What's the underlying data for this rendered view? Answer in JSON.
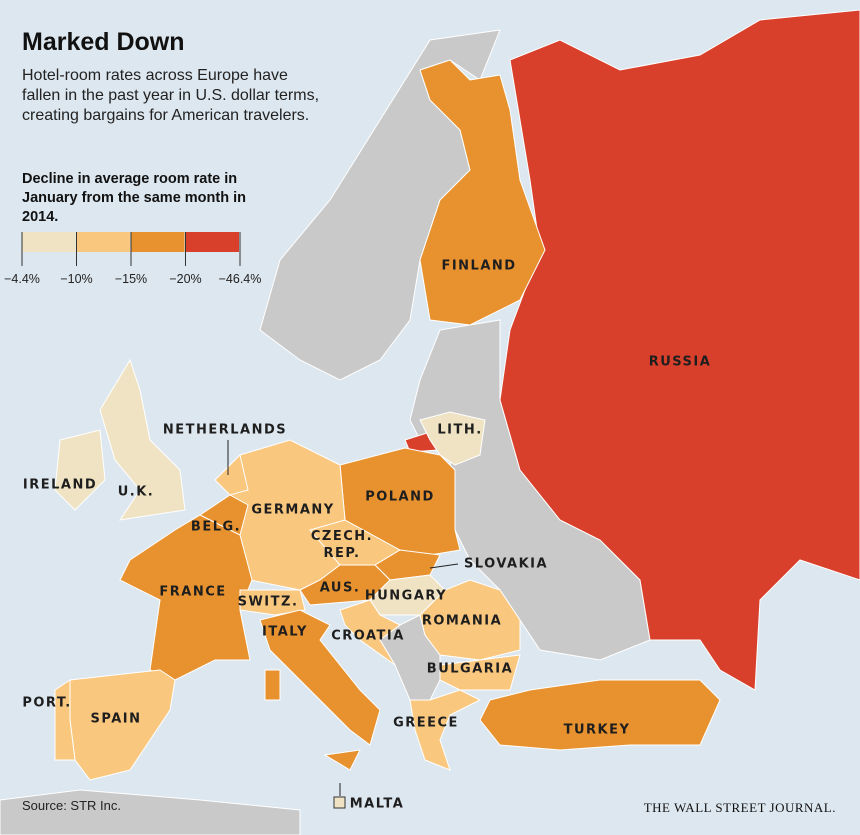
{
  "header": {
    "title": "Marked Down",
    "subtitle": "Hotel-room rates across Europe have fallen in the past year in U.S. dollar terms, creating bargains for American travelers."
  },
  "legend": {
    "title": "Decline in average room rate in January from the same month in 2014.",
    "colors": [
      "#efe3c3",
      "#f9c77e",
      "#e8922f",
      "#d9402b"
    ],
    "ticks": [
      "−4.4%",
      "−10%",
      "−15%",
      "−20%",
      "−46.4%"
    ]
  },
  "countries": [
    {
      "label": "RUSSIA",
      "color": "#d9402b"
    },
    {
      "label": "FINLAND",
      "color": "#e8922f"
    },
    {
      "label": "LITH.",
      "color": "#efe3c3"
    },
    {
      "label": "POLAND",
      "color": "#e8922f"
    },
    {
      "label": "IRELAND",
      "color": "#efe3c3"
    },
    {
      "label": "U.K.",
      "color": "#efe3c3"
    },
    {
      "label": "NETHERLANDS",
      "color": "#f9c77e"
    },
    {
      "label": "BELG.",
      "color": "#e8922f"
    },
    {
      "label": "GERMANY",
      "color": "#f9c77e"
    },
    {
      "label": "CZECH. REP.",
      "color": "#f9c77e"
    },
    {
      "label": "SLOVAKIA",
      "color": "#e8922f"
    },
    {
      "label": "FRANCE",
      "color": "#e8922f"
    },
    {
      "label": "SWITZ.",
      "color": "#f9c77e"
    },
    {
      "label": "AUS.",
      "color": "#e8922f"
    },
    {
      "label": "HUNGARY",
      "color": "#efe3c3"
    },
    {
      "label": "ITALY",
      "color": "#e8922f"
    },
    {
      "label": "CROATIA",
      "color": "#f9c77e"
    },
    {
      "label": "ROMANIA",
      "color": "#f9c77e"
    },
    {
      "label": "BULGARIA",
      "color": "#f9c77e"
    },
    {
      "label": "GREECE",
      "color": "#f9c77e"
    },
    {
      "label": "TURKEY",
      "color": "#e8922f"
    },
    {
      "label": "PORT.",
      "color": "#f9c77e"
    },
    {
      "label": "SPAIN",
      "color": "#f9c77e"
    },
    {
      "label": "MALTA",
      "color": "#efe3c3"
    }
  ],
  "footer": {
    "source": "Source: STR Inc.",
    "publisher": "THE WALL STREET JOURNAL."
  }
}
